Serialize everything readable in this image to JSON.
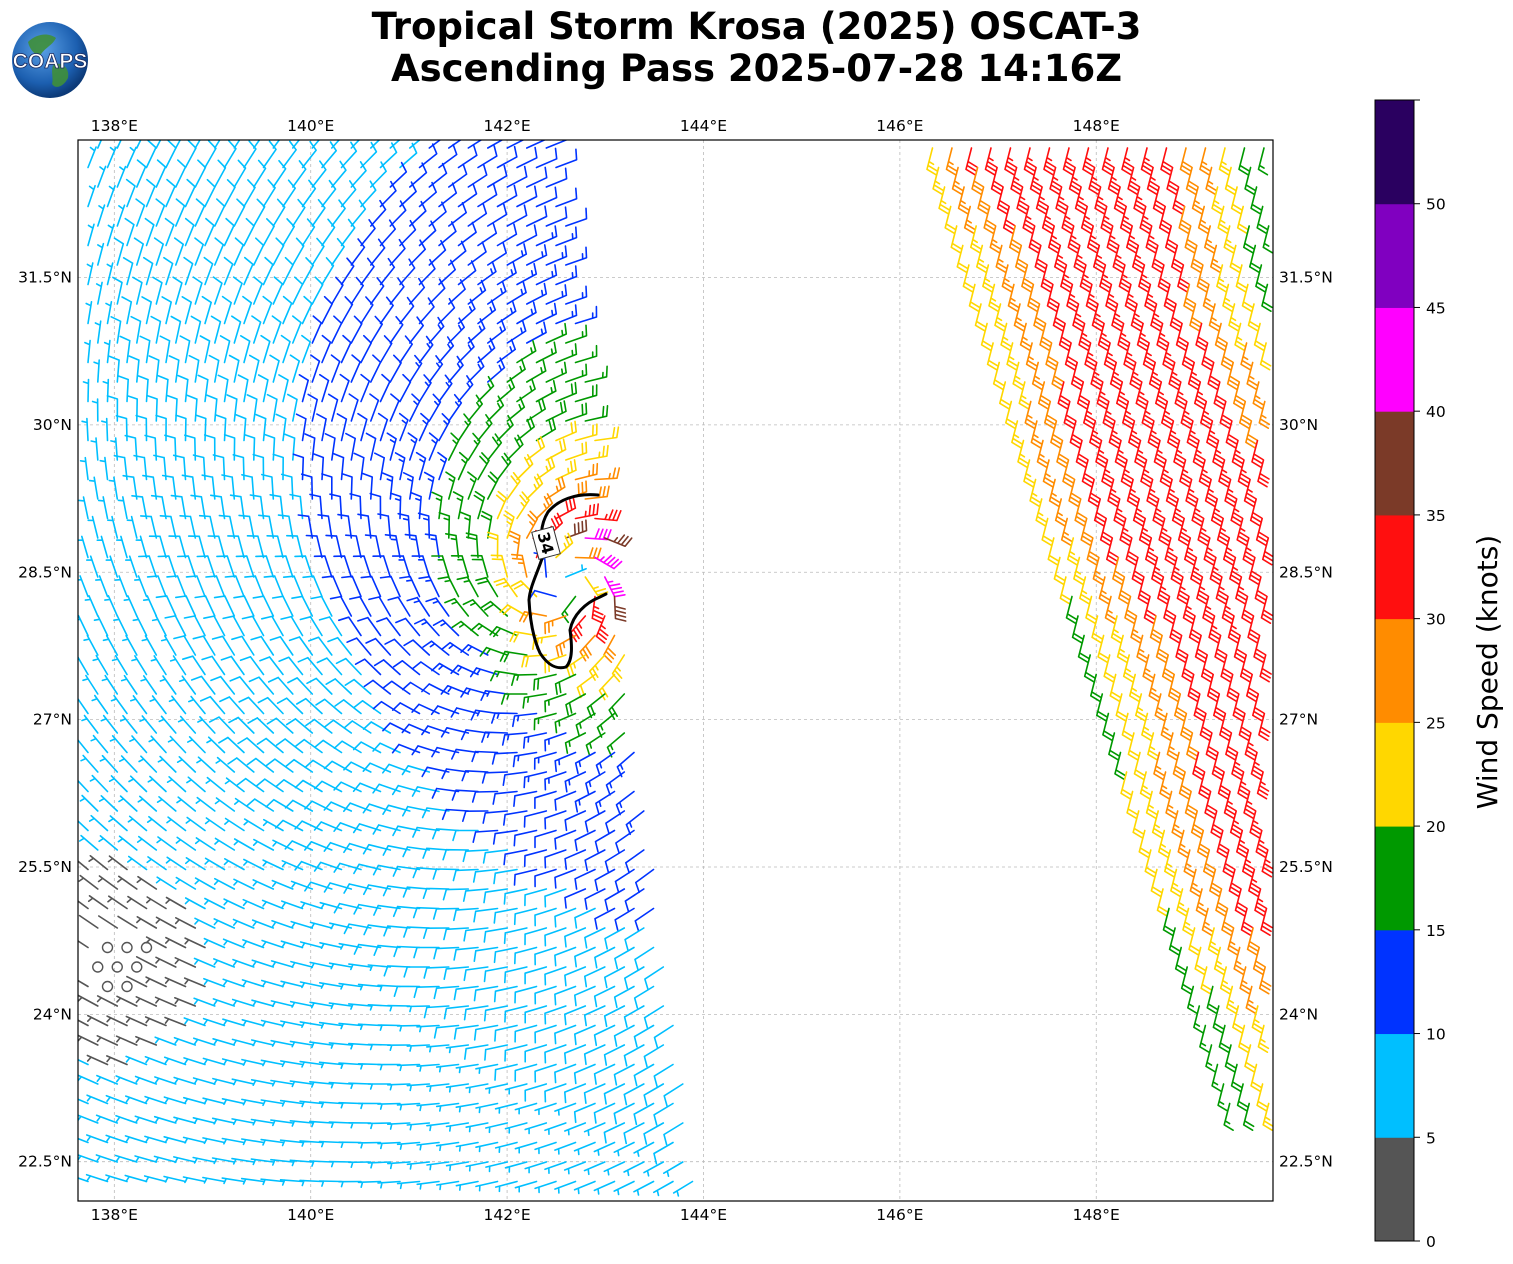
{
  "title": {
    "line1": "Tropical Storm Krosa (2025) OSCAT-3",
    "line2": "Ascending Pass 2025-07-28 14:16Z"
  },
  "logo": {
    "text": "COAPS"
  },
  "map": {
    "lon_range": [
      137.63,
      149.8
    ],
    "lat_range": [
      22.1,
      32.9
    ],
    "lon_ticks": [
      "138°E",
      "140°E",
      "142°E",
      "144°E",
      "146°E",
      "148°E"
    ],
    "lat_ticks": [
      "22.5°N",
      "24°N",
      "25.5°N",
      "27°N",
      "28.5°N",
      "30°N",
      "31.5°N"
    ],
    "gridlines": true,
    "contour": {
      "label": "34",
      "value_knots": 34
    },
    "storm_center": {
      "lon": 142.6,
      "lat": 28.4
    }
  },
  "colorbar": {
    "label": "Wind Speed (knots)",
    "tick_labels": [
      "0",
      "5",
      "10",
      "15",
      "20",
      "25",
      "30",
      "35",
      "40",
      "45",
      "50"
    ],
    "bins": [
      {
        "min": 0,
        "max": 5,
        "color": "#555555"
      },
      {
        "min": 5,
        "max": 10,
        "color": "#00bfff"
      },
      {
        "min": 10,
        "max": 15,
        "color": "#0033ff"
      },
      {
        "min": 15,
        "max": 20,
        "color": "#009900"
      },
      {
        "min": 20,
        "max": 25,
        "color": "#ffd700"
      },
      {
        "min": 25,
        "max": 30,
        "color": "#ff8c00"
      },
      {
        "min": 30,
        "max": 35,
        "color": "#ff0f0f"
      },
      {
        "min": 35,
        "max": 40,
        "color": "#7b3a28"
      },
      {
        "min": 40,
        "max": 45,
        "color": "#ff00ff"
      },
      {
        "min": 45,
        "max": 50,
        "color": "#8000c0"
      },
      {
        "min": 50,
        "max": 55,
        "color": "#2a0060"
      }
    ]
  }
}
